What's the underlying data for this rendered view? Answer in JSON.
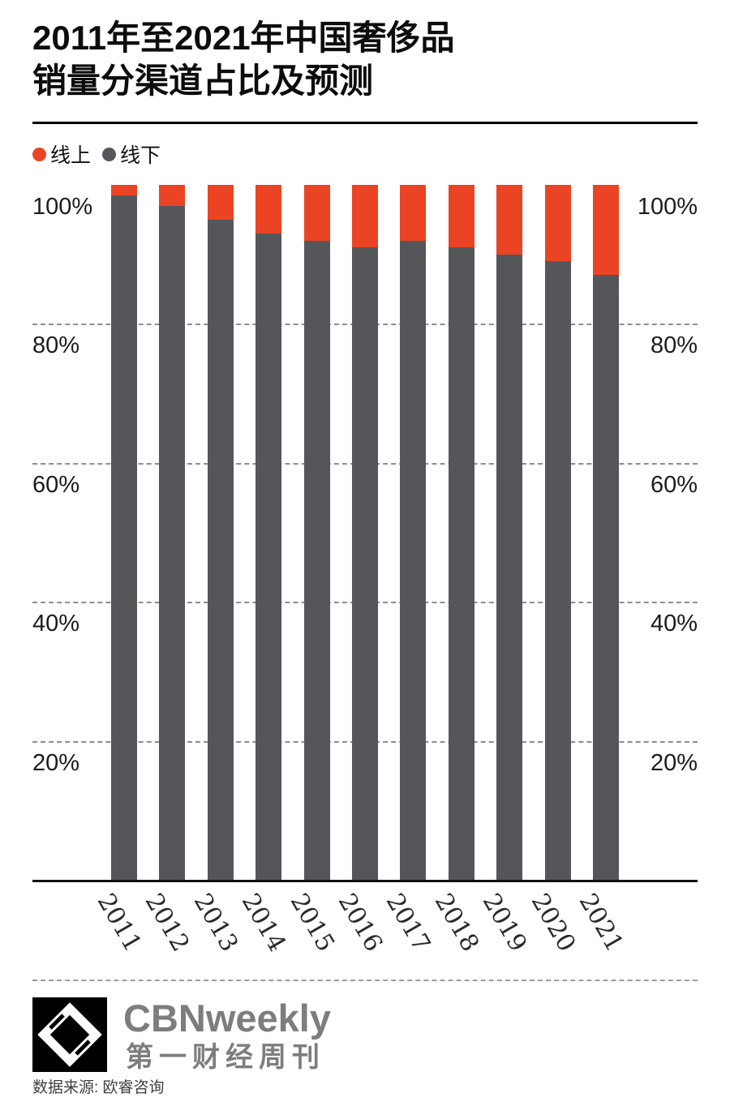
{
  "title": {
    "line1": "2011年至2021年中国奢侈品",
    "line2": "销量分渠道占比及预测"
  },
  "legend": {
    "items": [
      {
        "label": "线上",
        "color": "#ea4425"
      },
      {
        "label": "线下",
        "color": "#55565a"
      }
    ]
  },
  "chart_data": {
    "type": "bar",
    "stacked": true,
    "title": "2011年至2021年中国奢侈品销量分渠道占比及预测",
    "categories": [
      "2011",
      "2012",
      "2013",
      "2014",
      "2015",
      "2016",
      "2017",
      "2018",
      "2019",
      "2020",
      "2021"
    ],
    "series": [
      {
        "name": "线下",
        "color": "#55565a",
        "values": [
          98.5,
          97,
          95,
          93,
          92,
          91,
          92,
          91,
          90,
          89,
          87
        ]
      },
      {
        "name": "线上",
        "color": "#ea4425",
        "values": [
          1.5,
          3,
          5,
          7,
          8,
          9,
          8,
          9,
          10,
          11,
          13
        ]
      }
    ],
    "unit": "%",
    "ylim": [
      0,
      100
    ],
    "yticks": [
      20,
      40,
      60,
      80,
      100
    ],
    "ytick_suffix": "%",
    "y_axis_labels_both_sides": true,
    "grid": "dashed-horizontal",
    "legend_position": "top-left",
    "x_label_rotation_deg": 60
  },
  "footer": {
    "brand_en": "CBNweekly",
    "brand_cn": "第一财经周刊",
    "source": "数据来源: 欧睿咨询"
  }
}
